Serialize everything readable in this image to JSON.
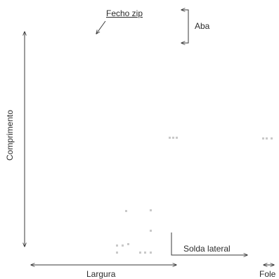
{
  "labels": {
    "zipper": "Fecho zip",
    "flap": "Aba",
    "length": "Comprimento",
    "side_seal": "Solda lateral",
    "width": "Largura",
    "gusset": "Fole"
  },
  "colors": {
    "line": "#3a3a3a",
    "text": "#2b2b2b",
    "artifact": "#c9c9c9"
  }
}
